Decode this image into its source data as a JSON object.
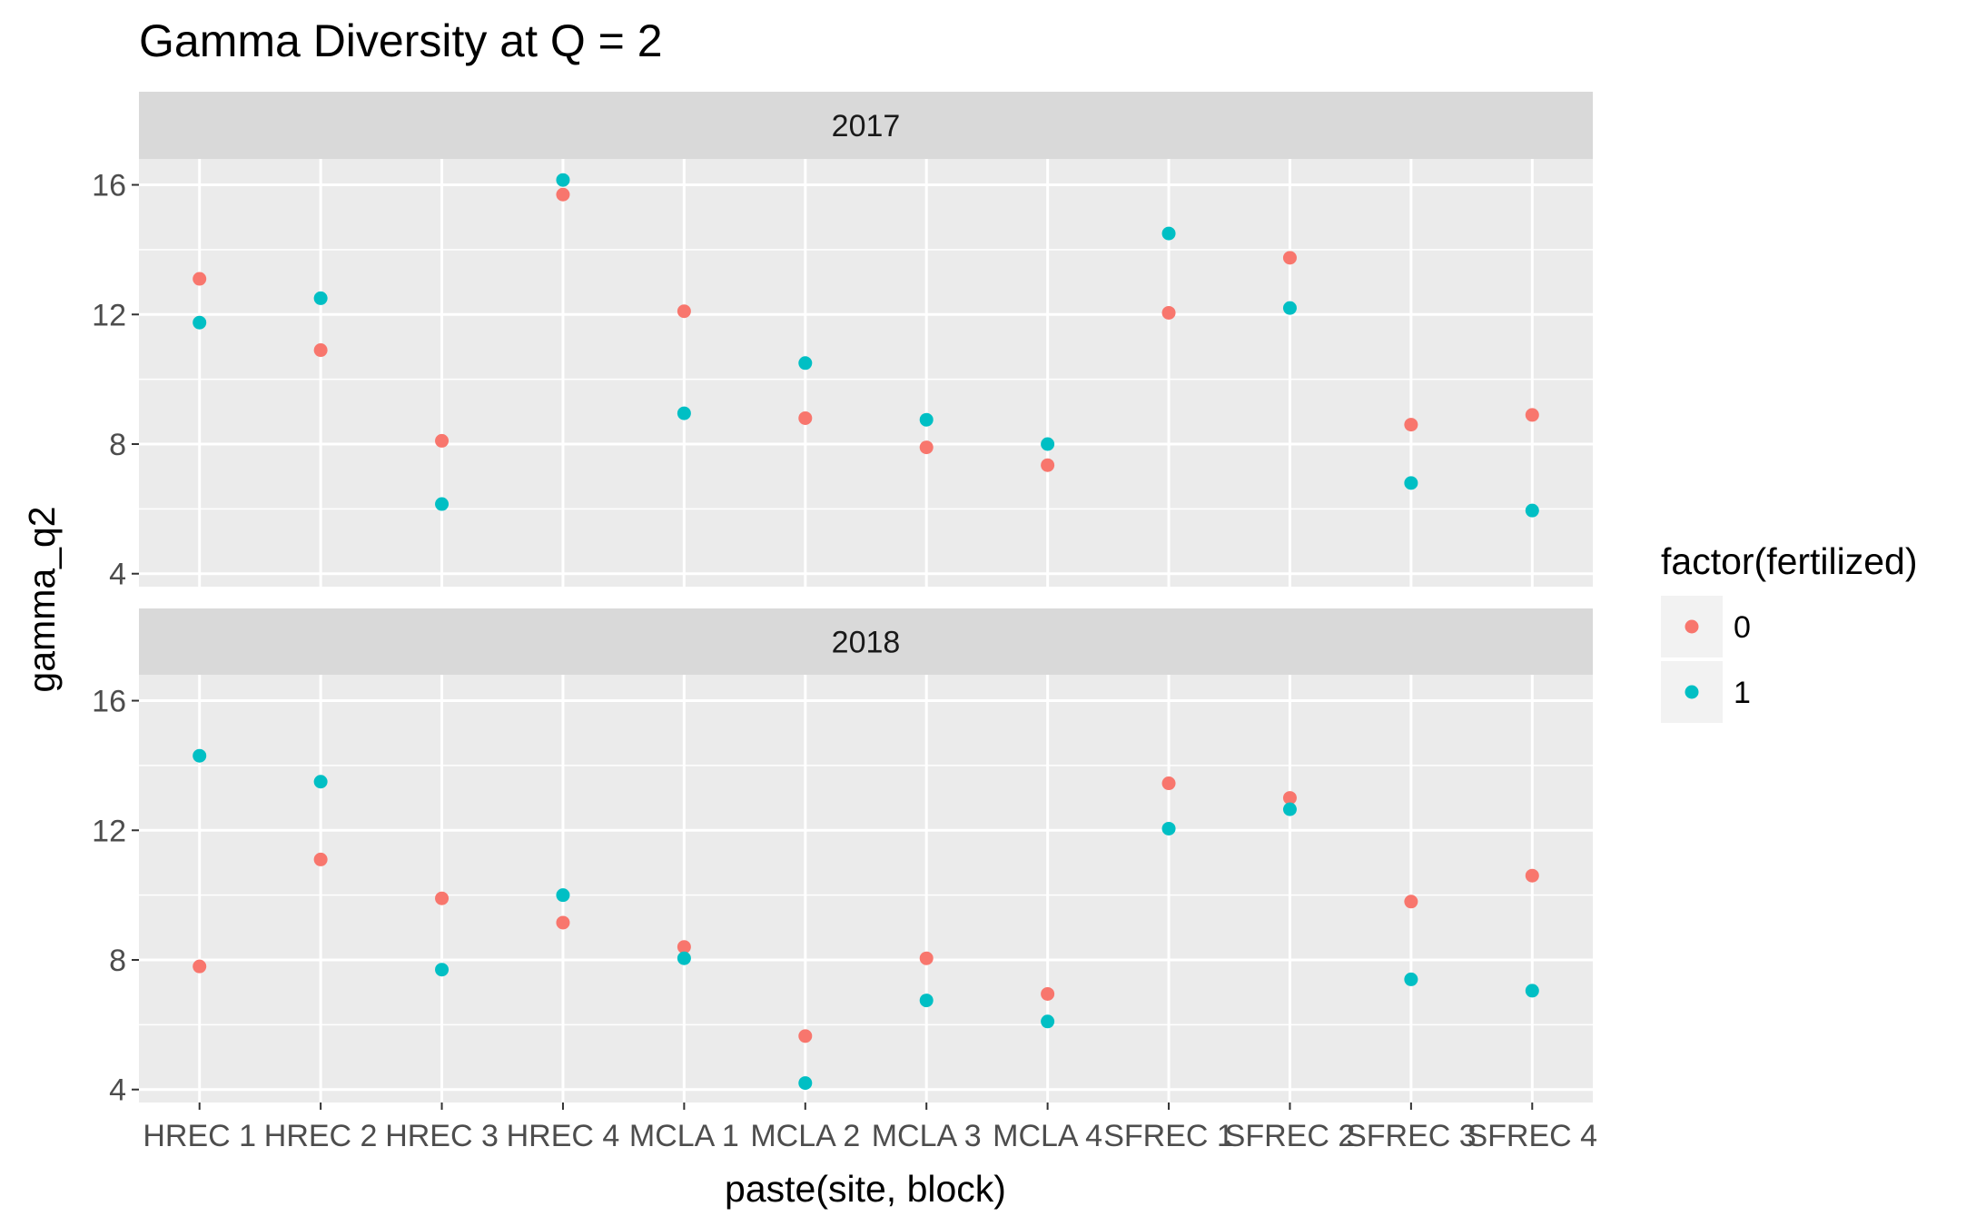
{
  "chart_data": {
    "type": "scatter",
    "title": "Gamma Diversity at Q = 2",
    "xlabel": "paste(site, block)",
    "ylabel": "gamma_q2",
    "categories": [
      "HREC 1",
      "HREC 2",
      "HREC 3",
      "HREC 4",
      "MCLA 1",
      "MCLA 2",
      "MCLA 3",
      "MCLA 4",
      "SFREC 1",
      "SFREC 2",
      "SFREC 3",
      "SFREC 4"
    ],
    "y_ticks": [
      4,
      8,
      12,
      16
    ],
    "ylim": [
      3.6,
      16.8
    ],
    "grid": true,
    "legend": {
      "title": "factor(fertilized)",
      "position": "right",
      "entries": [
        {
          "label": "0",
          "color": "#F8766D"
        },
        {
          "label": "1",
          "color": "#00BFC4"
        }
      ]
    },
    "panels": [
      {
        "strip": "2017",
        "series": [
          {
            "name": "0",
            "color": "#F8766D",
            "values": [
              13.1,
              10.9,
              8.1,
              15.7,
              12.1,
              8.8,
              7.9,
              7.35,
              12.05,
              13.75,
              8.6,
              8.9
            ]
          },
          {
            "name": "1",
            "color": "#00BFC4",
            "values": [
              11.75,
              12.5,
              6.15,
              16.15,
              8.95,
              10.5,
              8.75,
              8.0,
              14.5,
              12.2,
              6.8,
              5.95
            ]
          }
        ]
      },
      {
        "strip": "2018",
        "series": [
          {
            "name": "0",
            "color": "#F8766D",
            "values": [
              7.8,
              11.1,
              9.9,
              9.15,
              8.4,
              5.65,
              8.05,
              6.95,
              13.45,
              13.0,
              9.8,
              10.6
            ]
          },
          {
            "name": "1",
            "color": "#00BFC4",
            "values": [
              14.3,
              13.5,
              7.7,
              10.0,
              8.05,
              4.2,
              6.75,
              6.1,
              12.05,
              12.65,
              7.4,
              7.05
            ]
          }
        ]
      }
    ]
  }
}
